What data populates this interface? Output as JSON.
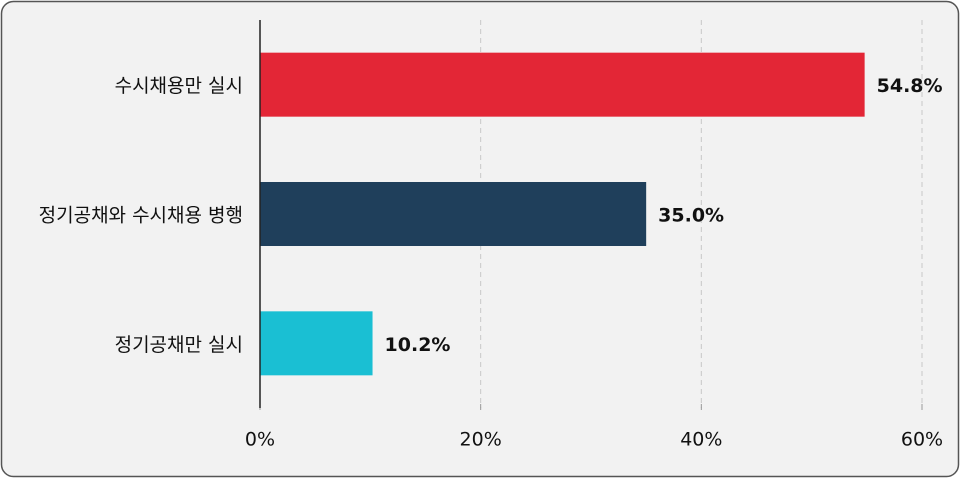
{
  "chart_data": {
    "type": "bar",
    "orientation": "horizontal",
    "categories": [
      "수시채용만 실시",
      "정기공채와 수시채용 병행",
      "정기공채만 실시"
    ],
    "values": [
      54.8,
      35.0,
      10.2
    ],
    "value_labels": [
      "54.8%",
      "35.0%",
      "10.2%"
    ],
    "colors": [
      "#e32636",
      "#1f3f5b",
      "#1abfd3"
    ],
    "xlim": [
      0,
      60
    ],
    "xticks": [
      {
        "value": 0,
        "label": "0%"
      },
      {
        "value": 20,
        "label": "20%"
      },
      {
        "value": 40,
        "label": "40%"
      },
      {
        "value": 60,
        "label": "60%"
      }
    ],
    "grid": true
  }
}
